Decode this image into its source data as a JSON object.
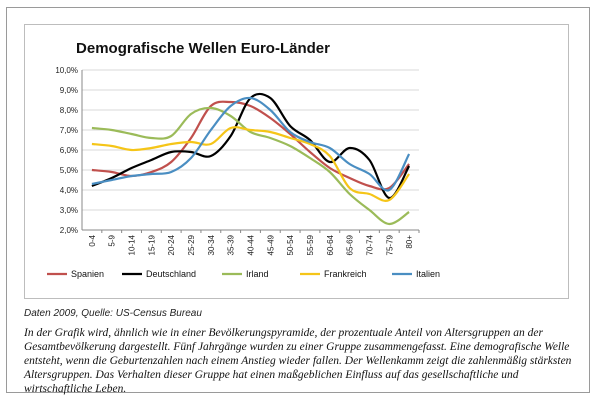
{
  "chart_data": {
    "type": "line",
    "title": "Demografische Wellen Euro-Länder",
    "categories": [
      "0-4",
      "5-9",
      "10-14",
      "15-19",
      "20-24",
      "25-29",
      "30-34",
      "35-39",
      "40-44",
      "45-49",
      "50-54",
      "55-59",
      "60-64",
      "65-69",
      "70-74",
      "75-79",
      "80+"
    ],
    "y_tick_labels": [
      "2,0%",
      "3,0%",
      "4,0%",
      "5,0%",
      "6,0%",
      "7,0%",
      "8,0%",
      "9,0%",
      "10,0%"
    ],
    "ylim": [
      2.0,
      10.0
    ],
    "grid": true,
    "legend_position": "bottom",
    "series": [
      {
        "name": "Spanien",
        "color": "#c0504d",
        "values": [
          5.0,
          4.9,
          4.7,
          4.9,
          5.4,
          6.6,
          8.2,
          8.4,
          8.2,
          7.6,
          6.8,
          5.9,
          5.1,
          4.6,
          4.2,
          4.1,
          5.3
        ]
      },
      {
        "name": "Deutschland",
        "color": "#000000",
        "values": [
          4.2,
          4.6,
          5.1,
          5.5,
          5.9,
          5.9,
          5.7,
          6.7,
          8.6,
          8.6,
          7.2,
          6.5,
          5.4,
          6.1,
          5.5,
          3.6,
          5.2
        ]
      },
      {
        "name": "Irland",
        "color": "#9bbb59",
        "values": [
          7.1,
          7.0,
          6.8,
          6.6,
          6.7,
          7.8,
          8.1,
          7.7,
          6.9,
          6.6,
          6.2,
          5.6,
          4.9,
          3.8,
          3.0,
          2.3,
          2.9
        ]
      },
      {
        "name": "Frankreich",
        "color": "#f5c518",
        "values": [
          6.3,
          6.2,
          6.0,
          6.1,
          6.3,
          6.4,
          6.3,
          7.1,
          7.0,
          6.9,
          6.6,
          6.3,
          5.7,
          4.1,
          3.8,
          3.5,
          4.8
        ]
      },
      {
        "name": "Italien",
        "color": "#4a8ec2",
        "values": [
          4.3,
          4.5,
          4.7,
          4.8,
          4.9,
          5.6,
          7.0,
          8.2,
          8.6,
          8.0,
          6.9,
          6.4,
          6.1,
          5.3,
          4.8,
          4.0,
          5.8
        ]
      }
    ]
  },
  "source": "Daten 2009, Quelle: US-Census Bureau",
  "caption": "In der Grafik wird, ähnlich wie in einer Bevölkerungspyramide, der prozentuale Anteil von Altersgruppen an der Gesamtbevölkerung dargestellt. Fünf Jahrgänge wurden zu einer Gruppe zusammengefasst. Eine demografische Welle entsteht, wenn die Geburtenzahlen nach einem Anstieg wieder fallen. Der Wellenkamm zeigt die zahlenmäßig stärksten Altersgruppen. Das Verhalten dieser Gruppe hat einen maßgeblichen Einfluss auf das gesellschaftliche und wirtschaftliche Leben."
}
